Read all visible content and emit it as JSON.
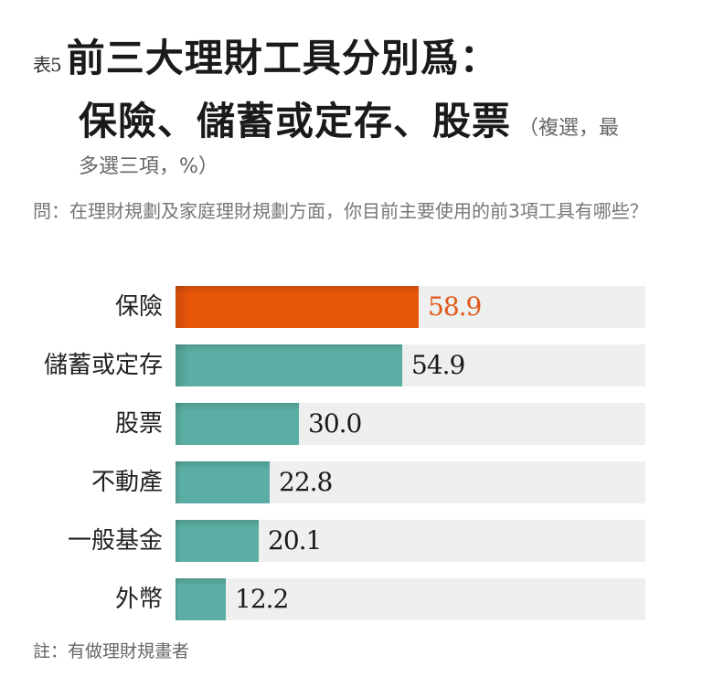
{
  "header": {
    "table_no": "表5",
    "title_line1": "前三大理財工具分別爲：",
    "title_line2": "保險、儲蓄或定存、股票",
    "title_note_a": "（複選，最",
    "title_note_b": "多選三項，%）"
  },
  "question": "問：在理財規劃及家庭理財規劃方面，你目前主要使用的前3項工具有哪些？",
  "footnote": "註：有做理財規畫者",
  "colors": {
    "highlight": "#e8560a",
    "bar": "#5aaea3",
    "track": "#eeefef",
    "highlight_text": "#e0591a"
  },
  "chart_data": {
    "type": "bar",
    "orientation": "horizontal",
    "title": "前三大理財工具分別爲：保險、儲蓄或定存、股票（複選，最多選三項，%）",
    "categories": [
      "保險",
      "儲蓄或定存",
      "股票",
      "不動產",
      "一般基金",
      "外幣"
    ],
    "values": [
      58.9,
      54.9,
      30.0,
      22.8,
      20.1,
      12.2
    ],
    "labels": [
      "58.9",
      "54.9",
      "30.0",
      "22.8",
      "20.1",
      "12.2"
    ],
    "highlight_index": 0,
    "unit": "%",
    "xlim": [
      0,
      114
    ],
    "grid": false,
    "legend": "none"
  }
}
